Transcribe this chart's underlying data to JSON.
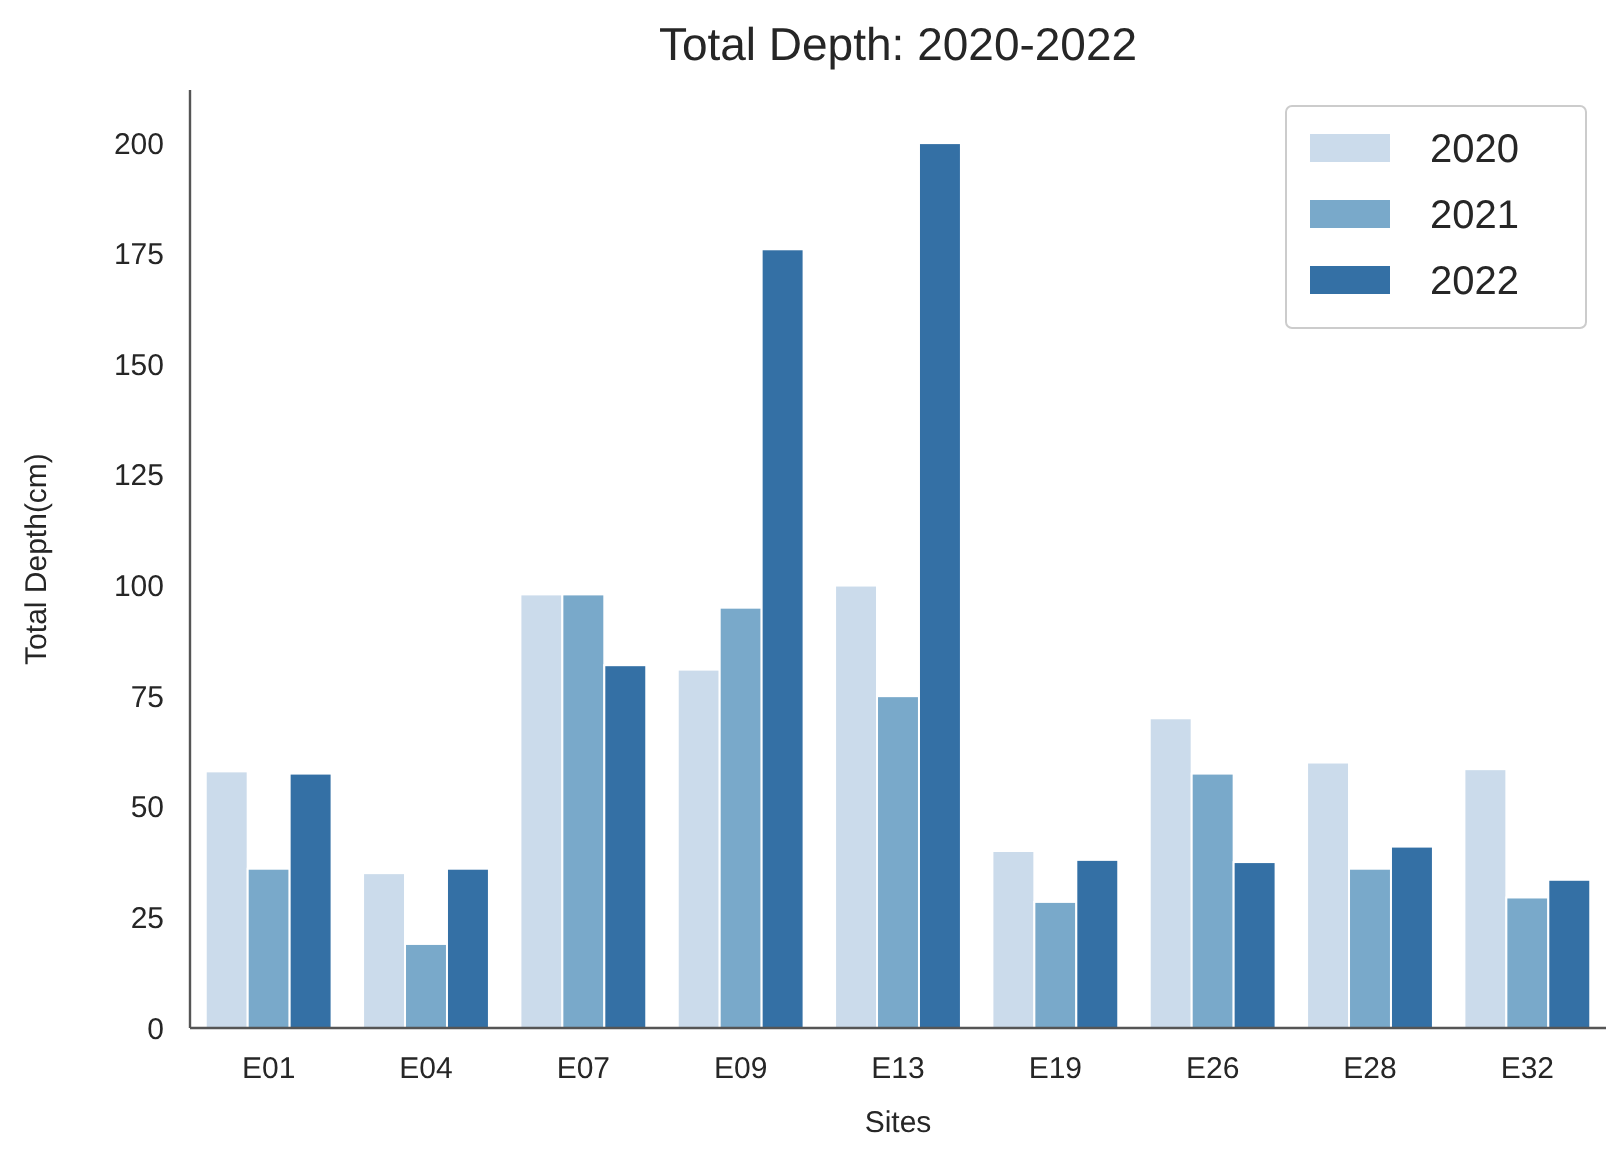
{
  "chart_data": {
    "type": "bar",
    "title": "Total Depth: 2020-2022",
    "xlabel": "Sites",
    "ylabel": "Total Depth(cm)",
    "categories": [
      "E01",
      "E04",
      "E07",
      "E09",
      "E13",
      "E19",
      "E26",
      "E28",
      "E32"
    ],
    "series": [
      {
        "name": "2020",
        "color": "#cbdbeb",
        "values": [
          58,
          35,
          98,
          81,
          100,
          40,
          70,
          60,
          58.5
        ]
      },
      {
        "name": "2021",
        "color": "#79a9ca",
        "values": [
          36,
          19,
          98,
          95,
          75,
          28.5,
          57.5,
          36,
          29.5
        ]
      },
      {
        "name": "2022",
        "color": "#3470a5",
        "values": [
          57.5,
          36,
          82,
          176,
          200,
          38,
          37.5,
          41,
          33.5
        ]
      }
    ],
    "ylim": [
      0,
      212
    ],
    "yticks": [
      0,
      25,
      50,
      75,
      100,
      125,
      150,
      175,
      200
    ],
    "legend": "top right",
    "grid": false
  }
}
